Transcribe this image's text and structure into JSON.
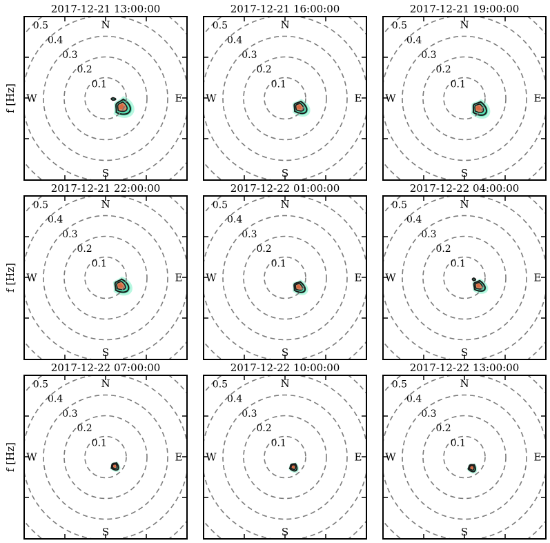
{
  "figure": {
    "ylabel": "f [Hz]"
  },
  "chart_data": {
    "type": "polar-contour",
    "description_labels": {
      "compass": {
        "N": "N",
        "S": "S",
        "E": "E",
        "W": "W"
      },
      "radii": [
        0.1,
        0.2,
        0.3,
        0.4,
        0.5
      ],
      "radius_labels": [
        "0.1",
        "0.2",
        "0.3",
        "0.4",
        "0.5"
      ]
    },
    "colors": {
      "ring": "#7a7a7a",
      "contour": "#1a1a1a",
      "low": "#7ff0c8",
      "mid": "#2fd6a0",
      "high": "#e08a62",
      "peak": "#d9663f"
    },
    "panels": [
      {
        "title": "2017-12-21 13:00:00",
        "show_ylabel": true,
        "blobs": [
          {
            "dir": 118,
            "f": 0.085,
            "spread": 26,
            "width": 0.05,
            "level": 0.9
          },
          {
            "dir": 95,
            "f": 0.035,
            "spread": 10,
            "width": 0.014,
            "level": 0.35
          }
        ]
      },
      {
        "title": "2017-12-21 16:00:00",
        "show_ylabel": false,
        "blobs": [
          {
            "dir": 122,
            "f": 0.078,
            "spread": 22,
            "width": 0.045,
            "level": 0.95
          }
        ]
      },
      {
        "title": "2017-12-21 19:00:00",
        "show_ylabel": false,
        "blobs": [
          {
            "dir": 125,
            "f": 0.08,
            "spread": 24,
            "width": 0.048,
            "level": 0.95
          }
        ]
      },
      {
        "title": "2017-12-21 22:00:00",
        "show_ylabel": true,
        "blobs": [
          {
            "dir": 118,
            "f": 0.078,
            "spread": 24,
            "width": 0.048,
            "level": 0.9
          }
        ]
      },
      {
        "title": "2017-12-22 01:00:00",
        "show_ylabel": false,
        "blobs": [
          {
            "dir": 124,
            "f": 0.076,
            "spread": 20,
            "width": 0.04,
            "level": 0.85
          }
        ]
      },
      {
        "title": "2017-12-22 04:00:00",
        "show_ylabel": false,
        "blobs": [
          {
            "dir": 120,
            "f": 0.075,
            "spread": 20,
            "width": 0.04,
            "level": 0.8
          },
          {
            "dir": 100,
            "f": 0.045,
            "spread": 8,
            "width": 0.01,
            "level": 0.3
          }
        ]
      },
      {
        "title": "2017-12-22 07:00:00",
        "show_ylabel": true,
        "blobs": [
          {
            "dir": 135,
            "f": 0.06,
            "spread": 18,
            "width": 0.025,
            "level": 0.65
          }
        ]
      },
      {
        "title": "2017-12-22 10:00:00",
        "show_ylabel": false,
        "blobs": [
          {
            "dir": 140,
            "f": 0.06,
            "spread": 18,
            "width": 0.025,
            "level": 0.65
          }
        ]
      },
      {
        "title": "2017-12-22 13:00:00",
        "show_ylabel": false,
        "blobs": [
          {
            "dir": 145,
            "f": 0.06,
            "spread": 18,
            "width": 0.025,
            "level": 0.6
          }
        ]
      }
    ]
  }
}
